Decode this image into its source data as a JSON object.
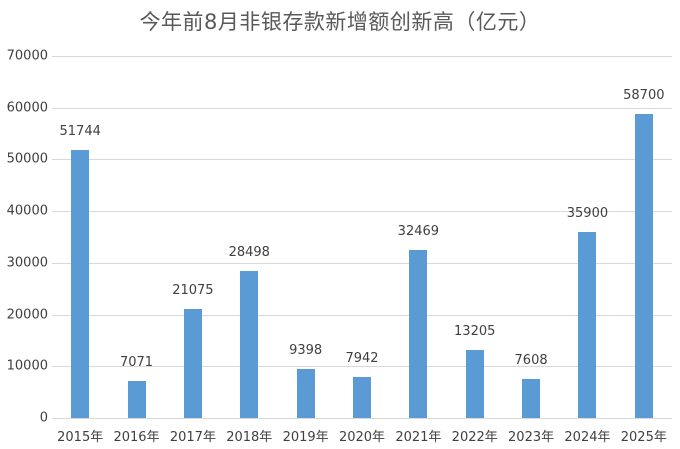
{
  "chart_data": {
    "type": "bar",
    "title": "今年前8月非银存款新增额创新高（亿元）",
    "xlabel": "",
    "ylabel": "",
    "categories": [
      "2015年",
      "2016年",
      "2017年",
      "2018年",
      "2019年",
      "2020年",
      "2021年",
      "2022年",
      "2023年",
      "2024年",
      "2025年"
    ],
    "values": [
      51744,
      7071,
      21075,
      28498,
      9398,
      7942,
      32469,
      13205,
      7608,
      35900,
      58700
    ],
    "ylim": [
      0,
      70000
    ],
    "yticks": [
      "0",
      "10000",
      "20000",
      "30000",
      "40000",
      "50000",
      "60000",
      "70000"
    ],
    "grid": true,
    "legend": "none",
    "data_labels": true,
    "bar_color": "#5b9bd5"
  }
}
